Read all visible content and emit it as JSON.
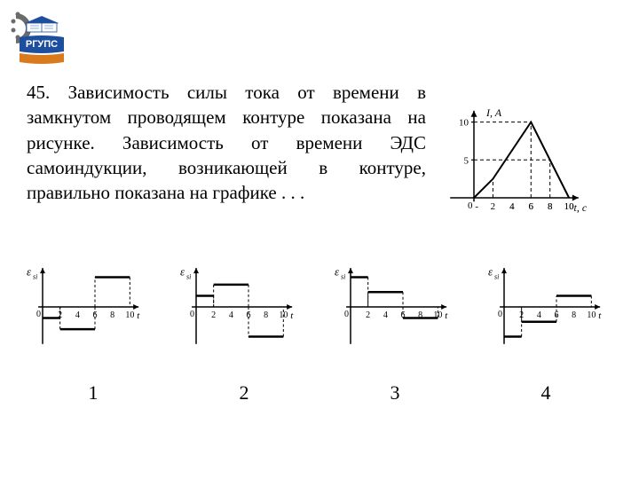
{
  "logo": {
    "text_top": "РГУПС",
    "colors": {
      "blue": "#1e4f9e",
      "light_blue": "#4a7bc8",
      "white": "#ffffff",
      "orange": "#d97a1e",
      "gear_gray": "#6b6b6b"
    }
  },
  "problem": {
    "number": "45.",
    "text": "Зависимость силы тока от времени в замкнутом проводящем контуре показана на рисунке. Зависимость от времени ЭДС самоиндукции, возникающей в контуре, правильно показана на графике . . ."
  },
  "main_chart": {
    "type": "line",
    "xlabel": "t, с",
    "ylabel": "I, A",
    "xlim": [
      -3,
      11
    ],
    "ylim": [
      -1,
      12
    ],
    "xticks": [
      2,
      4,
      6,
      8,
      10
    ],
    "yticks": [
      5,
      10
    ],
    "points": [
      [
        0,
        0
      ],
      [
        2,
        2.5
      ],
      [
        6,
        10
      ],
      [
        10,
        0
      ]
    ],
    "dashed_verticals": [
      [
        2,
        2.5
      ],
      [
        6,
        10
      ],
      [
        8,
        5
      ]
    ],
    "dashed_horizontals": [
      [
        5,
        8
      ],
      [
        10,
        6
      ]
    ],
    "line_color": "#000000",
    "axis_color": "#000000",
    "grid_color": "#000000",
    "line_width": 2,
    "background_color": "#ffffff",
    "label_fontsize": 12
  },
  "option_charts": {
    "common": {
      "type": "step",
      "xlim": [
        -1,
        11
      ],
      "ylim": [
        -2.2,
        2.2
      ],
      "xticks": [
        2,
        4,
        6,
        8,
        10
      ],
      "xlabel": "t",
      "ylabel": "ε_si",
      "line_color": "#000000",
      "axis_color": "#000000",
      "line_width": 2.5,
      "dash_color": "#000000",
      "background_color": "#ffffff"
    },
    "charts": [
      {
        "segments": [
          [
            0,
            2,
            -0.6
          ],
          [
            2,
            6,
            -1.2
          ],
          [
            6,
            10,
            1.6
          ]
        ]
      },
      {
        "segments": [
          [
            0,
            2,
            0.6
          ],
          [
            2,
            6,
            1.2
          ],
          [
            6,
            10,
            -1.6
          ]
        ]
      },
      {
        "segments": [
          [
            0,
            2,
            1.6
          ],
          [
            2,
            6,
            0.8
          ],
          [
            6,
            10,
            -0.6
          ]
        ]
      },
      {
        "segments": [
          [
            0,
            2,
            -1.6
          ],
          [
            2,
            6,
            -0.8
          ],
          [
            6,
            10,
            0.6
          ]
        ]
      }
    ]
  },
  "option_labels": [
    "1",
    "2",
    "3",
    "4"
  ]
}
